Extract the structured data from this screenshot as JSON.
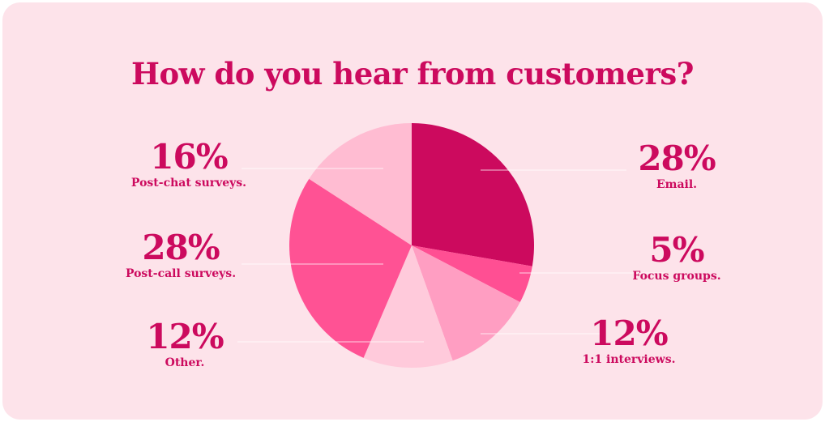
{
  "chart_data": {
    "type": "pie",
    "title": "How do you hear from customers?",
    "unit": "%",
    "slices": [
      {
        "label": "Email.",
        "value": 28,
        "display": "28%",
        "color": "#cc0a5e"
      },
      {
        "label": "Focus groups.",
        "value": 5,
        "display": "5%",
        "color": "#ff4f93"
      },
      {
        "label": "1:1 interviews.",
        "value": 12,
        "display": "12%",
        "color": "#ff9ec2"
      },
      {
        "label": "Other.",
        "value": 12,
        "display": "12%",
        "color": "#ffcadb"
      },
      {
        "label": "Post-call surveys.",
        "value": 28,
        "display": "28%",
        "color": "#ff5294"
      },
      {
        "label": "Post-chat surveys.",
        "value": 16,
        "display": "16%",
        "color": "#ffbcd2"
      }
    ]
  }
}
